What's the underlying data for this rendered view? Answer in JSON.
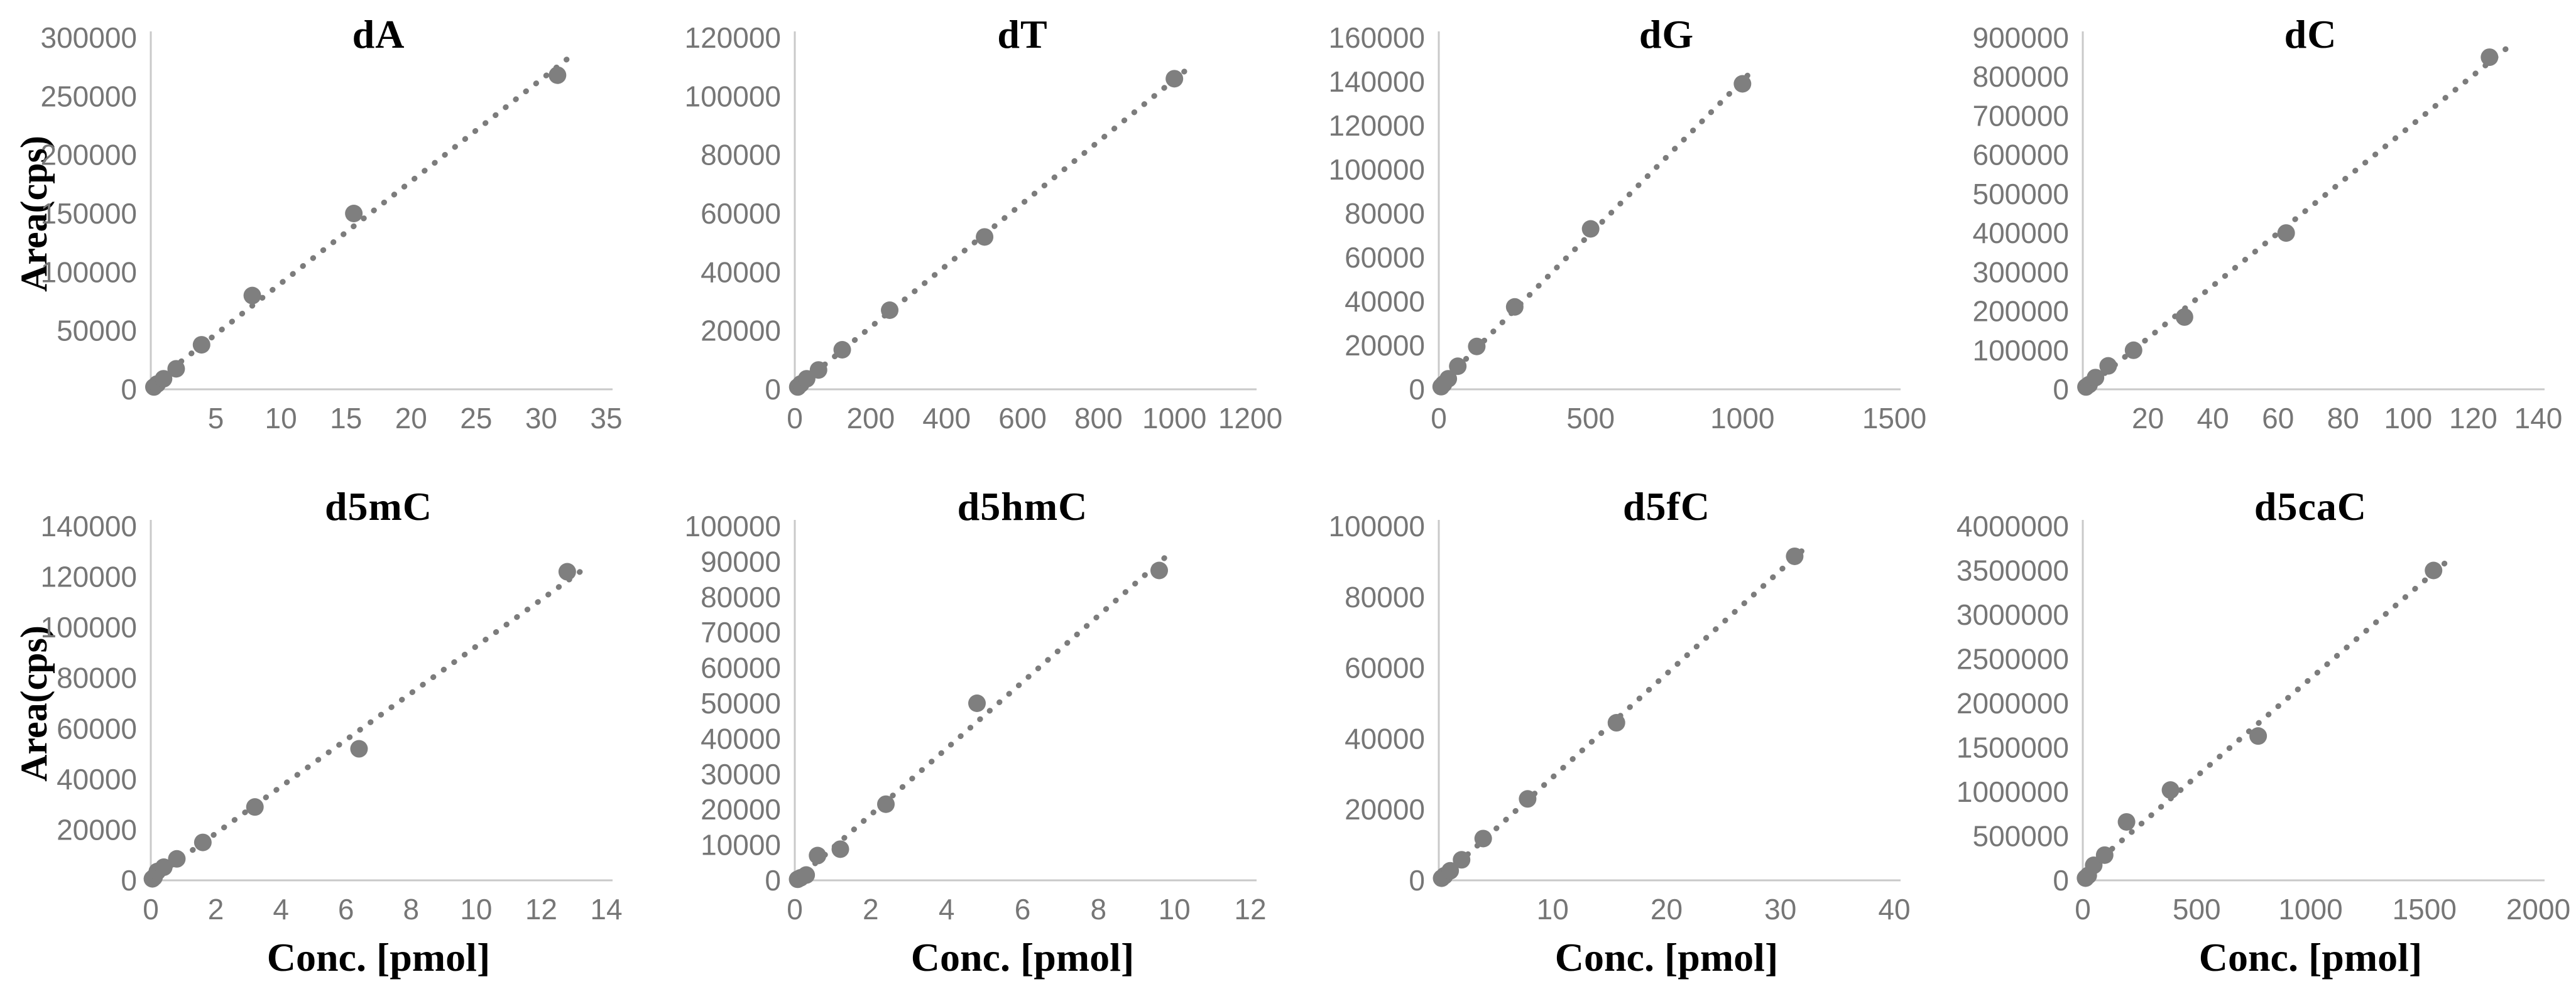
{
  "figure": {
    "ylabel": "Area(cps)",
    "xlabel": "Conc. [pmol]",
    "colors": {
      "marker": "#7f7f7f",
      "trendline": "#7c7c7c",
      "axis": "#c9c9c9",
      "tick_text": "#767676",
      "title_text": "#000000",
      "background": "#ffffff"
    }
  },
  "chart_data": [
    {
      "type": "scatter",
      "title": "dA",
      "x": [
        0.24,
        0.49,
        0.98,
        1.95,
        3.9,
        7.8,
        15.6,
        31.25
      ],
      "y": [
        2000,
        4500,
        9000,
        17500,
        38000,
        80000,
        150000,
        268000
      ],
      "xlim": [
        0,
        35
      ],
      "ylim": [
        0,
        300000
      ],
      "x_ticks": [
        5,
        10,
        15,
        20,
        25,
        30,
        35
      ],
      "y_ticks": [
        0,
        50000,
        100000,
        150000,
        200000,
        250000,
        300000
      ],
      "trendline": true,
      "show_ylabel": true,
      "show_xlabel": false
    },
    {
      "type": "scatter",
      "title": "dT",
      "x": [
        7.8,
        15.6,
        31.25,
        62.5,
        125,
        250,
        500,
        1000
      ],
      "y": [
        800,
        1800,
        3600,
        6600,
        13500,
        27000,
        52000,
        106000
      ],
      "xlim": [
        0,
        1200
      ],
      "ylim": [
        0,
        120000
      ],
      "x_ticks": [
        0,
        200,
        400,
        600,
        800,
        1000,
        1200
      ],
      "y_ticks": [
        0,
        20000,
        40000,
        60000,
        80000,
        100000,
        120000
      ],
      "trendline": true,
      "show_ylabel": false,
      "show_xlabel": false
    },
    {
      "type": "scatter",
      "title": "dG",
      "x": [
        7.8,
        15.6,
        31.25,
        62.5,
        125,
        250,
        500,
        1000
      ],
      "y": [
        1200,
        2400,
        4800,
        10500,
        19500,
        37500,
        73000,
        139000
      ],
      "xlim": [
        0,
        1500
      ],
      "ylim": [
        0,
        160000
      ],
      "x_ticks": [
        0,
        500,
        1000,
        1500
      ],
      "y_ticks": [
        0,
        20000,
        40000,
        60000,
        80000,
        100000,
        120000,
        140000,
        160000
      ],
      "trendline": true,
      "show_ylabel": false,
      "show_xlabel": false
    },
    {
      "type": "scatter",
      "title": "dC",
      "x": [
        0.98,
        1.95,
        3.9,
        7.8,
        15.6,
        31.25,
        62.5,
        125
      ],
      "y": [
        6000,
        12000,
        30000,
        60000,
        100000,
        185000,
        400000,
        850000
      ],
      "xlim": [
        0,
        140
      ],
      "ylim": [
        0,
        900000
      ],
      "x_ticks": [
        20,
        40,
        60,
        80,
        100,
        120,
        140
      ],
      "y_ticks": [
        0,
        100000,
        200000,
        300000,
        400000,
        500000,
        600000,
        700000,
        800000,
        900000
      ],
      "trendline": true,
      "show_ylabel": false,
      "show_xlabel": false
    },
    {
      "type": "scatter",
      "title": "d5mC",
      "x": [
        0.05,
        0.1,
        0.2,
        0.4,
        0.8,
        1.6,
        3.2,
        6.4,
        12.8
      ],
      "y": [
        600,
        1200,
        3500,
        5200,
        8500,
        15000,
        29000,
        52000,
        122000
      ],
      "xlim": [
        0,
        14
      ],
      "ylim": [
        0,
        140000
      ],
      "x_ticks": [
        0,
        2,
        4,
        6,
        8,
        10,
        12,
        14
      ],
      "y_ticks": [
        0,
        20000,
        40000,
        60000,
        80000,
        100000,
        120000,
        140000
      ],
      "trendline": true,
      "show_ylabel": true,
      "show_xlabel": true
    },
    {
      "type": "scatter",
      "title": "d5hmC",
      "x": [
        0.075,
        0.15,
        0.3,
        0.6,
        1.2,
        2.4,
        4.8,
        9.6
      ],
      "y": [
        300,
        700,
        1500,
        7000,
        8800,
        21500,
        50000,
        87500
      ],
      "xlim": [
        0,
        12
      ],
      "ylim": [
        0,
        100000
      ],
      "x_ticks": [
        0,
        2,
        4,
        6,
        8,
        10,
        12
      ],
      "y_ticks": [
        0,
        10000,
        20000,
        30000,
        40000,
        50000,
        60000,
        70000,
        80000,
        90000,
        100000
      ],
      "trendline": true,
      "show_ylabel": false,
      "show_xlabel": true
    },
    {
      "type": "scatter",
      "title": "d5fC",
      "x": [
        0.25,
        0.5,
        1,
        2,
        3.9,
        7.8,
        15.6,
        31.25
      ],
      "y": [
        600,
        1300,
        2700,
        5800,
        11800,
        23000,
        44500,
        91500
      ],
      "xlim": [
        0,
        40
      ],
      "ylim": [
        0,
        100000
      ],
      "x_ticks": [
        10,
        20,
        30,
        40
      ],
      "y_ticks": [
        0,
        20000,
        40000,
        60000,
        80000,
        100000
      ],
      "trendline": true,
      "show_ylabel": false,
      "show_xlabel": true
    },
    {
      "type": "scatter",
      "title": "d5caC",
      "x": [
        12,
        24,
        48,
        96,
        192,
        385,
        770,
        1540
      ],
      "y": [
        25000,
        55000,
        170000,
        285000,
        660000,
        1020000,
        1630000,
        3500000
      ],
      "xlim": [
        0,
        2000
      ],
      "ylim": [
        0,
        4000000
      ],
      "x_ticks": [
        0,
        500,
        1000,
        1500,
        2000
      ],
      "y_ticks": [
        0,
        500000,
        1000000,
        1500000,
        2000000,
        2500000,
        3000000,
        3500000,
        4000000
      ],
      "trendline": true,
      "show_ylabel": false,
      "show_xlabel": true
    }
  ]
}
